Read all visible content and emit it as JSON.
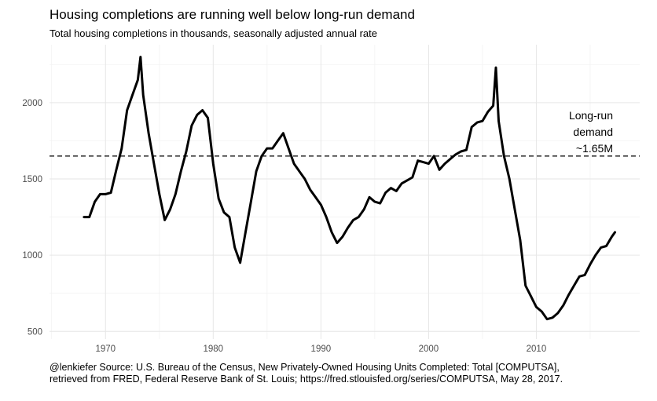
{
  "title": "Housing completions are running well below long-run demand",
  "subtitle": "Total housing completions in thousands, seasonally adjusted annual rate",
  "caption_line1": "@lenkiefer Source: U.S. Bureau of the Census, New Privately-Owned Housing Units Completed: Total [COMPUTSA],",
  "caption_line2": "retrieved from FRED, Federal Reserve Bank of St. Louis; https://fred.stlouisfed.org/series/COMPUTSA, May 28, 2017.",
  "annotation": [
    "Long-run",
    "demand",
    "~1.65M"
  ],
  "chart_data": {
    "type": "line",
    "title": "Housing completions are running well below long-run demand",
    "subtitle": "Total housing completions in thousands, seasonally adjusted annual rate",
    "xlabel": "",
    "ylabel": "",
    "xlim": [
      1964.8,
      2019.6
    ],
    "ylim": [
      450,
      2380
    ],
    "x_ticks": [
      1970,
      1980,
      1990,
      2000,
      2010
    ],
    "y_ticks": [
      500,
      1000,
      1500,
      2000
    ],
    "grid": true,
    "reference_line": {
      "y": 1650,
      "style": "dashed",
      "label": "Long-run demand ~1.65M"
    },
    "series": [
      {
        "color": "#000000",
        "x": [
          1968.0,
          1968.5,
          1969.0,
          1969.5,
          1970.0,
          1970.5,
          1971.0,
          1971.5,
          1972.0,
          1972.5,
          1973.0,
          1973.25,
          1973.5,
          1974.0,
          1974.5,
          1975.0,
          1975.5,
          1976.0,
          1976.5,
          1977.0,
          1977.5,
          1978.0,
          1978.5,
          1979.0,
          1979.5,
          1980.0,
          1980.5,
          1981.0,
          1981.5,
          1982.0,
          1982.5,
          1983.0,
          1983.5,
          1984.0,
          1984.5,
          1985.0,
          1985.5,
          1986.0,
          1986.5,
          1987.0,
          1987.5,
          1988.0,
          1988.5,
          1989.0,
          1989.5,
          1990.0,
          1990.5,
          1991.0,
          1991.5,
          1992.0,
          1992.5,
          1993.0,
          1993.5,
          1994.0,
          1994.5,
          1995.0,
          1995.5,
          1996.0,
          1996.5,
          1997.0,
          1997.5,
          1998.0,
          1998.5,
          1999.0,
          1999.5,
          2000.0,
          2000.5,
          2001.0,
          2001.5,
          2002.0,
          2002.5,
          2003.0,
          2003.5,
          2004.0,
          2004.5,
          2005.0,
          2005.5,
          2006.0,
          2006.25,
          2006.5,
          2007.0,
          2007.5,
          2008.0,
          2008.5,
          2009.0,
          2009.5,
          2010.0,
          2010.5,
          2011.0,
          2011.5,
          2012.0,
          2012.5,
          2013.0,
          2013.5,
          2014.0,
          2014.5,
          2015.0,
          2015.5,
          2016.0,
          2016.5,
          2017.0,
          2017.3
        ],
        "y": [
          1250,
          1250,
          1350,
          1400,
          1400,
          1410,
          1560,
          1700,
          1950,
          2050,
          2150,
          2300,
          2050,
          1800,
          1600,
          1400,
          1230,
          1300,
          1400,
          1550,
          1680,
          1850,
          1920,
          1950,
          1900,
          1600,
          1370,
          1280,
          1250,
          1050,
          950,
          1150,
          1350,
          1550,
          1650,
          1700,
          1700,
          1750,
          1800,
          1700,
          1600,
          1550,
          1500,
          1430,
          1380,
          1330,
          1250,
          1150,
          1080,
          1120,
          1180,
          1230,
          1250,
          1300,
          1380,
          1350,
          1340,
          1410,
          1440,
          1420,
          1470,
          1490,
          1510,
          1620,
          1610,
          1600,
          1650,
          1560,
          1600,
          1630,
          1660,
          1680,
          1690,
          1840,
          1870,
          1880,
          1940,
          1980,
          2230,
          1880,
          1650,
          1500,
          1300,
          1100,
          800,
          730,
          660,
          630,
          580,
          590,
          620,
          670,
          740,
          800,
          860,
          870,
          940,
          1000,
          1050,
          1060,
          1120,
          1150
        ]
      }
    ]
  }
}
